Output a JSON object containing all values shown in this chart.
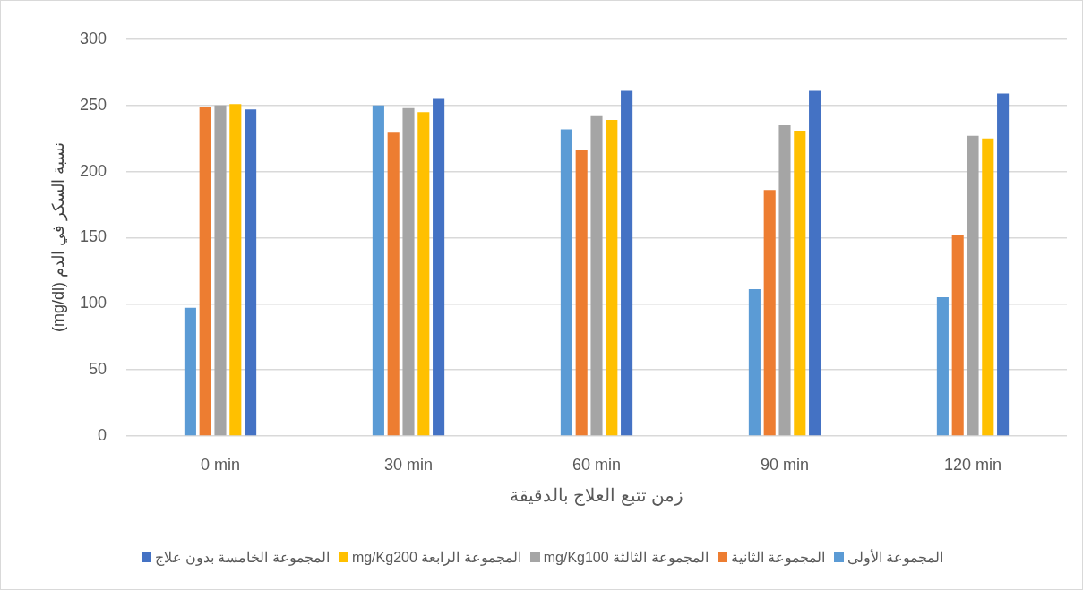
{
  "chart_data": {
    "type": "bar",
    "xlabel": "زمن تتبع العلاج بالدقيقة",
    "ylabel": "نسبة السكر في الدم (mg/dl)",
    "categories": [
      "0 min",
      "30 min",
      "60 min",
      "90 min",
      "120 min"
    ],
    "series": [
      {
        "name": "المجموعة الأولى",
        "color": "#5b9bd5",
        "values": [
          97,
          250,
          232,
          111,
          105
        ]
      },
      {
        "name": "المجموعة الثانية",
        "color": "#ed7d31",
        "values": [
          249,
          230,
          216,
          186,
          152
        ]
      },
      {
        "name": "المجموعة الثالثة mg/Kg100",
        "color": "#a5a5a5",
        "values": [
          250,
          248,
          242,
          235,
          227
        ]
      },
      {
        "name": "المجموعة الرابعة mg/Kg200",
        "color": "#ffc000",
        "values": [
          251,
          245,
          239,
          231,
          225
        ]
      },
      {
        "name": "المجموعة الخامسة بدون علاج",
        "color": "#4472c4",
        "values": [
          247,
          255,
          261,
          261,
          259
        ]
      }
    ],
    "ylim": [
      0,
      300
    ],
    "yticks": [
      0,
      50,
      100,
      150,
      200,
      250,
      300
    ],
    "grid": "y",
    "legend": "bottom"
  }
}
